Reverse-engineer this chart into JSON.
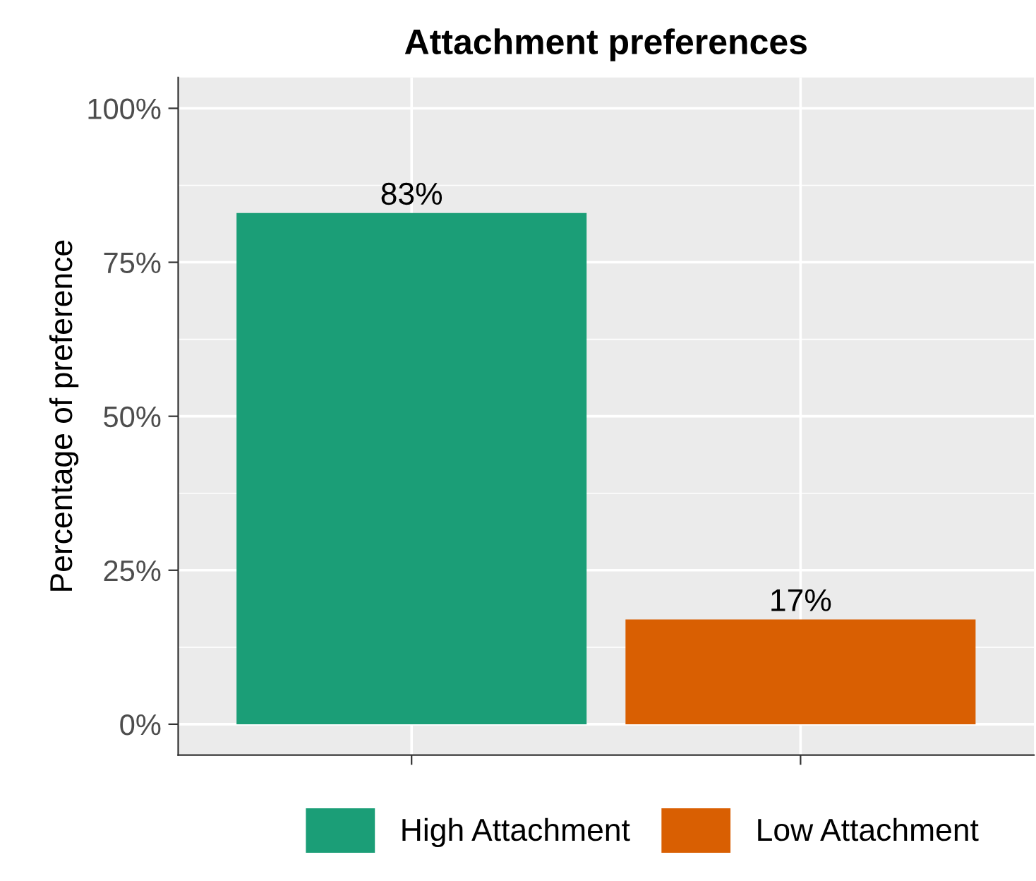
{
  "chart_data": {
    "type": "bar",
    "title": "Attachment preferences",
    "ylabel": "Percentage of preference",
    "categories": [
      null,
      null
    ],
    "series": [
      {
        "name": "High Attachment",
        "color": "#1b9e77",
        "values": [
          83,
          null
        ],
        "value_labels": [
          "83%",
          null
        ]
      },
      {
        "name": "Low Attachment",
        "color": "#d95f02",
        "values": [
          null,
          17
        ],
        "value_labels": [
          null,
          "17%"
        ]
      }
    ],
    "ylim": [
      -5,
      105
    ],
    "yticks": [
      {
        "value": 0,
        "label": "0%"
      },
      {
        "value": 25,
        "label": "25%"
      },
      {
        "value": 50,
        "label": "50%"
      },
      {
        "value": 75,
        "label": "75%"
      },
      {
        "value": 100,
        "label": "100%"
      }
    ],
    "grid": true,
    "legend": "bottom"
  }
}
